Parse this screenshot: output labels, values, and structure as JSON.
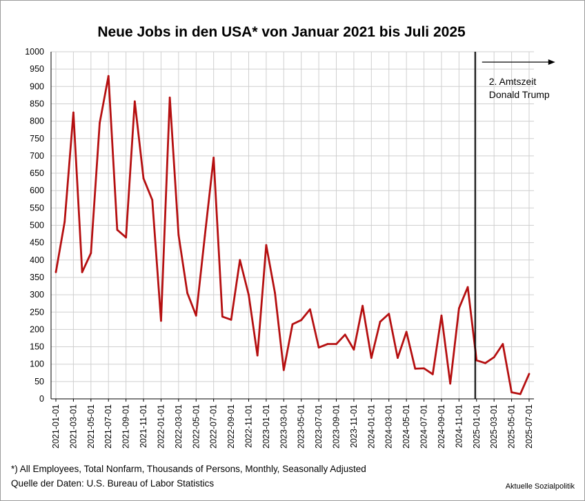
{
  "chart_data": {
    "type": "line",
    "title": "Neue Jobs in den USA* von Januar 2021 bis Juli 2025",
    "xlabel": "",
    "ylabel": "",
    "ylim": [
      0,
      1000
    ],
    "yticks": [
      0,
      50,
      100,
      150,
      200,
      250,
      300,
      350,
      400,
      450,
      500,
      550,
      600,
      650,
      700,
      750,
      800,
      850,
      900,
      950,
      1000
    ],
    "grid": true,
    "legend": "none",
    "line_color": "#b50f10",
    "x": [
      "2021-01-01",
      "2021-02-01",
      "2021-03-01",
      "2021-04-01",
      "2021-05-01",
      "2021-06-01",
      "2021-07-01",
      "2021-08-01",
      "2021-09-01",
      "2021-10-01",
      "2021-11-01",
      "2021-12-01",
      "2022-01-01",
      "2022-02-01",
      "2022-03-01",
      "2022-04-01",
      "2022-05-01",
      "2022-06-01",
      "2022-07-01",
      "2022-08-01",
      "2022-09-01",
      "2022-10-01",
      "2022-11-01",
      "2022-12-01",
      "2023-01-01",
      "2023-02-01",
      "2023-03-01",
      "2023-04-01",
      "2023-05-01",
      "2023-06-01",
      "2023-07-01",
      "2023-08-01",
      "2023-09-01",
      "2023-10-01",
      "2023-11-01",
      "2023-12-01",
      "2024-01-01",
      "2024-02-01",
      "2024-03-01",
      "2024-04-01",
      "2024-05-01",
      "2024-06-01",
      "2024-07-01",
      "2024-08-01",
      "2024-09-01",
      "2024-10-01",
      "2024-11-01",
      "2024-12-01",
      "2025-01-01",
      "2025-02-01",
      "2025-03-01",
      "2025-04-01",
      "2025-05-01",
      "2025-06-01",
      "2025-07-01"
    ],
    "x_tick_labels": [
      "2021-01-01",
      "2021-03-01",
      "2021-05-01",
      "2021-07-01",
      "2021-09-01",
      "2021-11-01",
      "2022-01-01",
      "2022-03-01",
      "2022-05-01",
      "2022-07-01",
      "2022-09-01",
      "2022-11-01",
      "2023-01-01",
      "2023-03-01",
      "2023-05-01",
      "2023-07-01",
      "2023-09-01",
      "2023-11-01",
      "2024-01-01",
      "2024-03-01",
      "2024-05-01",
      "2024-07-01",
      "2024-09-01",
      "2024-11-01",
      "2025-01-01",
      "2025-03-01",
      "2025-05-01",
      "2025-07-01"
    ],
    "values": [
      365,
      510,
      825,
      365,
      420,
      795,
      930,
      487,
      465,
      857,
      635,
      573,
      225,
      868,
      472,
      305,
      240,
      470,
      695,
      237,
      228,
      400,
      300,
      125,
      443,
      305,
      83,
      215,
      227,
      258,
      148,
      158,
      158,
      185,
      142,
      268,
      118,
      222,
      245,
      118,
      193,
      87,
      88,
      71,
      240,
      44,
      261,
      322,
      111,
      103,
      120,
      158,
      19,
      14,
      72
    ],
    "annotation": {
      "at_x": "2025-01-01",
      "text_lines": [
        "2. Amtszeit",
        "Donald Trump"
      ]
    },
    "footnotes": [
      "*) All Employees, Total Nonfarm, Thousands of Persons, Monthly, Seasonally Adjusted",
      "Quelle der Daten: U.S. Bureau of Labor Statistics"
    ],
    "source_mark": "Aktuelle Sozialpolitik"
  }
}
